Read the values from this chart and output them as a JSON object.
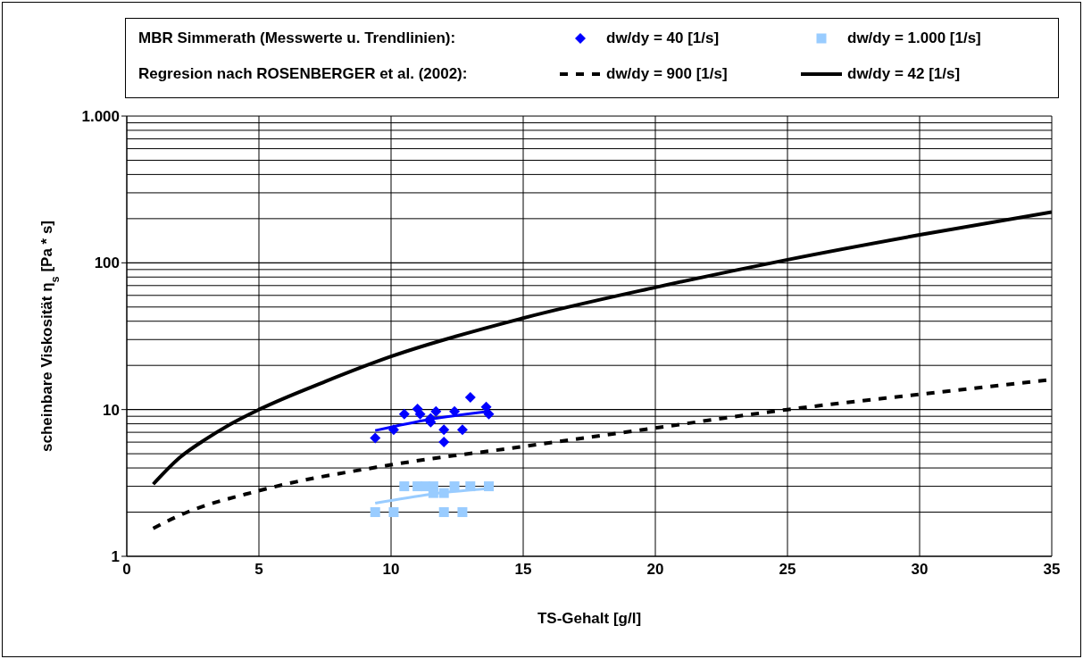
{
  "chart_data": {
    "type": "scatter",
    "xlabel": "TS-Gehalt [g/l]",
    "ylabel": "scheinbare Viskosität η$_{s}$ [Pa * s]",
    "annotations": [
      "MBR Simmerath (Messwerte u. Trendlinien):",
      "Regresion nach ROSENBERGER et al. (2002):"
    ],
    "xlim": [
      0,
      35
    ],
    "xticks": [
      0,
      5,
      10,
      15,
      20,
      25,
      30,
      35
    ],
    "ylim": [
      1,
      1000
    ],
    "yticks": [
      1,
      10,
      100,
      {
        "value": 1000,
        "label": "1.000"
      }
    ],
    "log": "y",
    "grid": true,
    "legend": "top",
    "series": [
      {
        "name": "dw/dy = 40 [1/s]",
        "marker": "diamond",
        "color": "#0000ff",
        "x": [
          9.4,
          10.1,
          10.5,
          11.0,
          11.1,
          11.5,
          11.7,
          11.5,
          12.0,
          12.0,
          12.4,
          12.7,
          13.0,
          13.6,
          13.7
        ],
        "values": [
          6.4,
          7.3,
          9.3,
          10.1,
          9.3,
          8.2,
          9.7,
          8.7,
          7.3,
          6.0,
          9.7,
          7.3,
          12.1,
          10.4,
          9.3
        ]
      },
      {
        "name": "dw/dy = 1.000 [1/s]",
        "marker": "square",
        "color": "#99ccff",
        "x": [
          9.4,
          10.1,
          10.5,
          11.0,
          11.3,
          11.6,
          11.6,
          12.0,
          12.0,
          12.4,
          12.7,
          13.0,
          13.7
        ],
        "values": [
          2.0,
          2.0,
          3.0,
          3.0,
          3.0,
          3.0,
          2.7,
          2.7,
          2.0,
          3.0,
          2.0,
          3.0,
          3.0
        ]
      },
      {
        "name": "dw/dy = 900 [1/s]",
        "type": "line",
        "line_style": "dashed",
        "color": "#000000",
        "x": [
          1,
          2,
          5,
          10,
          15,
          20,
          25,
          30,
          35
        ],
        "values": [
          1.55,
          1.9,
          2.8,
          4.2,
          5.6,
          7.5,
          10,
          12.7,
          16
        ]
      },
      {
        "name": "dw/dy = 42 [1/s]",
        "type": "line",
        "line_style": "solid",
        "color": "#000000",
        "x": [
          1,
          2,
          3,
          4,
          5,
          7.5,
          10,
          15,
          20,
          25,
          30,
          35
        ],
        "values": [
          3.1,
          4.7,
          6.3,
          8.1,
          10,
          15.5,
          23,
          42,
          68,
          105,
          155,
          222
        ]
      },
      {
        "type": "line",
        "line_style": "solid",
        "color": "#0000ff",
        "x": [
          9.4,
          11.5,
          13.7
        ],
        "values": [
          7.2,
          8.6,
          9.7
        ]
      },
      {
        "type": "line",
        "line_style": "solid",
        "color": "#99ccff",
        "x": [
          9.4,
          11.5,
          13.7
        ],
        "values": [
          2.3,
          2.65,
          2.9
        ]
      }
    ]
  }
}
